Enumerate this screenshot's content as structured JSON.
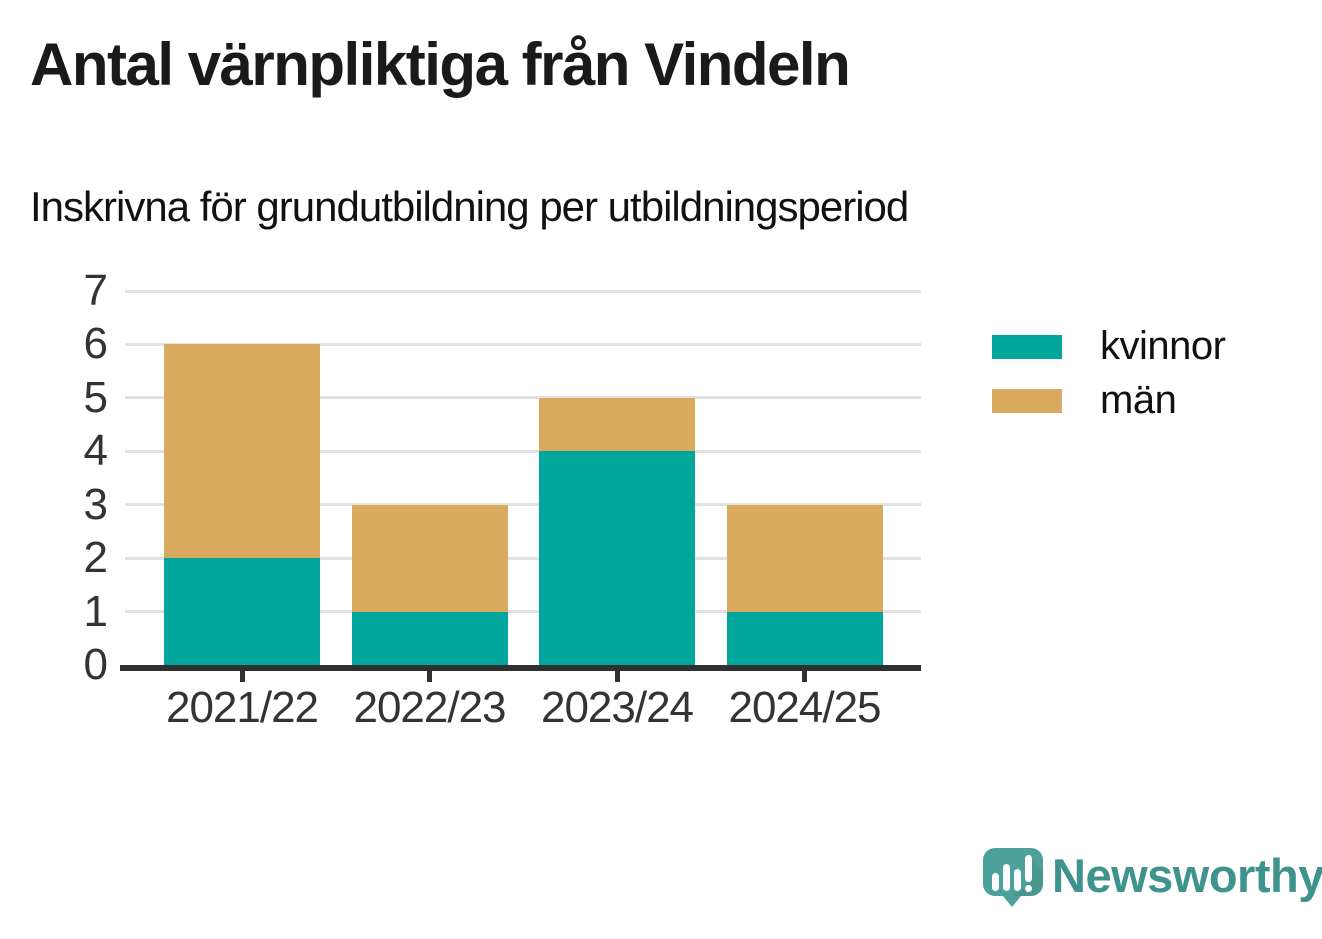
{
  "header": {
    "title": "Antal värnpliktiga från Vindeln",
    "subtitle": "Inskrivna för grundutbildning per utbildningsperiod"
  },
  "chart_data": {
    "type": "bar",
    "stacked": true,
    "title": "Antal värnpliktiga från Vindeln",
    "subtitle": "Inskrivna för grundutbildning per utbildningsperiod",
    "categories": [
      "2021/22",
      "2022/23",
      "2023/24",
      "2024/25"
    ],
    "series": [
      {
        "name": "kvinnor",
        "color": "#00a69b",
        "values": [
          2,
          1,
          4,
          1
        ]
      },
      {
        "name": "män",
        "color": "#d9aa5e",
        "values": [
          4,
          2,
          1,
          2
        ]
      }
    ],
    "totals": [
      6,
      3,
      5,
      3
    ],
    "xlabel": "",
    "ylabel": "",
    "ylim": [
      0,
      7
    ],
    "yticks": [
      0,
      1,
      2,
      3,
      4,
      5,
      6,
      7
    ],
    "grid": true,
    "legend_position": "right"
  },
  "colors": {
    "kvinnor": "#00a69b",
    "man": "#d9aa5e",
    "axis": "#303030",
    "gridline": "#e2e2e2",
    "text": "#333333",
    "brand_teal": "#3e948d",
    "icon_teal": "#4ca29a",
    "icon_shade": "#44948d"
  },
  "footer": {
    "brand": "Newsworthy",
    "logo_icon": "newsworthy-speech-bubble-chart-icon"
  }
}
